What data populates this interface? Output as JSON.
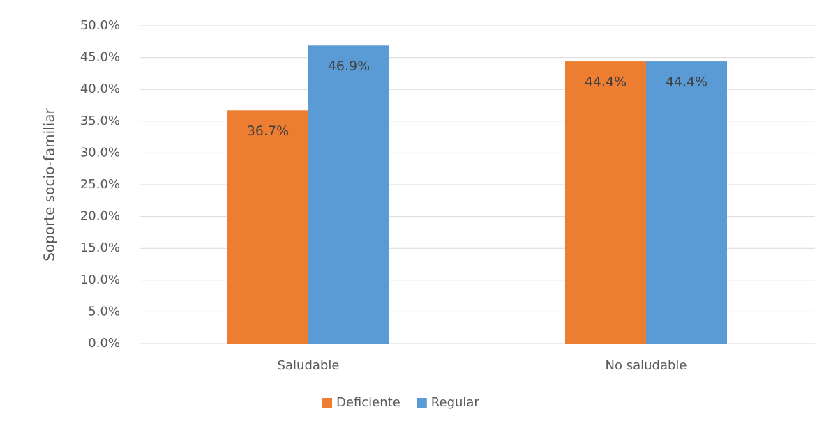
{
  "chart_data": {
    "type": "bar",
    "y_label": "Soporte socio-familiar",
    "categories": [
      "Saludable",
      "No saludable"
    ],
    "series": [
      {
        "name": "Deficiente",
        "color": "#ed7d31",
        "values": [
          36.7,
          44.4
        ],
        "value_labels": [
          "36.7%",
          "44.4%"
        ]
      },
      {
        "name": "Regular",
        "color": "#5b9bd5",
        "values": [
          46.9,
          44.4
        ],
        "value_labels": [
          "46.9%",
          "44.4%"
        ]
      }
    ],
    "ylim": [
      0,
      50
    ],
    "yticks": [
      {
        "value": 0,
        "label": "0.0%"
      },
      {
        "value": 5,
        "label": "5.0%"
      },
      {
        "value": 10,
        "label": "10.0%"
      },
      {
        "value": 15,
        "label": "15.0%"
      },
      {
        "value": 20,
        "label": "20.0%"
      },
      {
        "value": 25,
        "label": "25.0%"
      },
      {
        "value": 30,
        "label": "30.0%"
      },
      {
        "value": 35,
        "label": "35.0%"
      },
      {
        "value": 40,
        "label": "40.0%"
      },
      {
        "value": 45,
        "label": "45.0%"
      },
      {
        "value": 50,
        "label": "50.0%"
      }
    ],
    "grid": true,
    "legend": "bottom"
  }
}
